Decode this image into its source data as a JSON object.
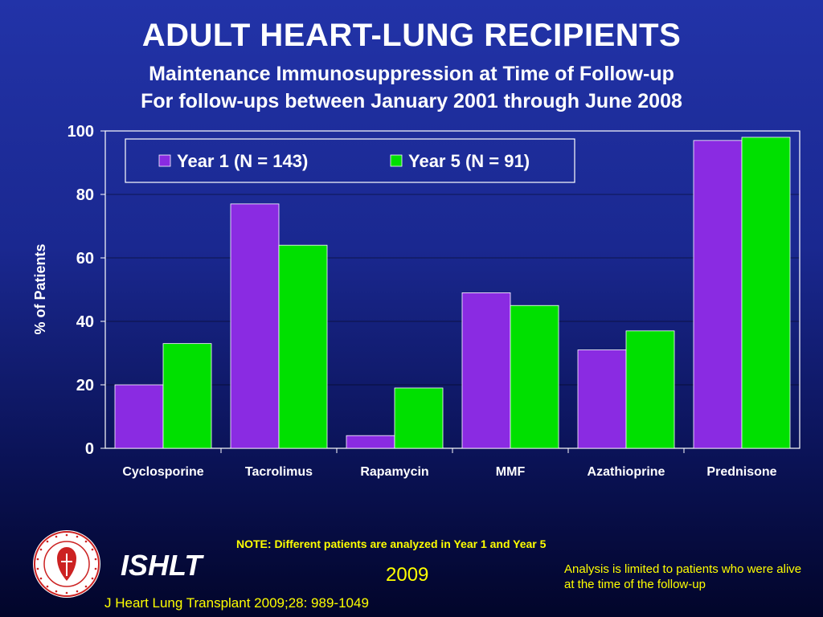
{
  "header": {
    "title": "ADULT HEART-LUNG RECIPIENTS",
    "subtitle_line1": "Maintenance Immunosuppression at Time of Follow-up",
    "subtitle_line2": "For follow-ups between January 2001 through June 2008"
  },
  "chart_data": {
    "type": "bar",
    "categories": [
      "Cyclosporine",
      "Tacrolimus",
      "Rapamycin",
      "MMF",
      "Azathioprine",
      "Prednisone"
    ],
    "series": [
      {
        "name": "Year 1 (N = 143)",
        "values": [
          20,
          77,
          4,
          49,
          31,
          97
        ],
        "color": "#8a2be2"
      },
      {
        "name": "Year 5 (N = 91)",
        "values": [
          33,
          64,
          19,
          45,
          37,
          98
        ],
        "color": "#00e000"
      }
    ],
    "ylabel": "% of Patients",
    "xlabel": "",
    "ylim": [
      0,
      100
    ],
    "yticks": [
      0,
      20,
      40,
      60,
      80,
      100
    ],
    "grid": true,
    "legend_position": "top"
  },
  "footer": {
    "note": "NOTE: Different patients are analyzed in Year 1 and Year 5",
    "org": "ISHLT",
    "year": "2009",
    "analysis_note": "Analysis is limited to patients who were alive at the time of the follow-up",
    "citation": "J Heart Lung Transplant 2009;28: 989-1049",
    "logo_text": "INTERNATIONAL SOCIETY FOR HEART & LUNG TRANSPLANTATION"
  },
  "colors": {
    "year1": "#8a2be2",
    "year5": "#00e000",
    "accent_text": "#ffff00"
  }
}
